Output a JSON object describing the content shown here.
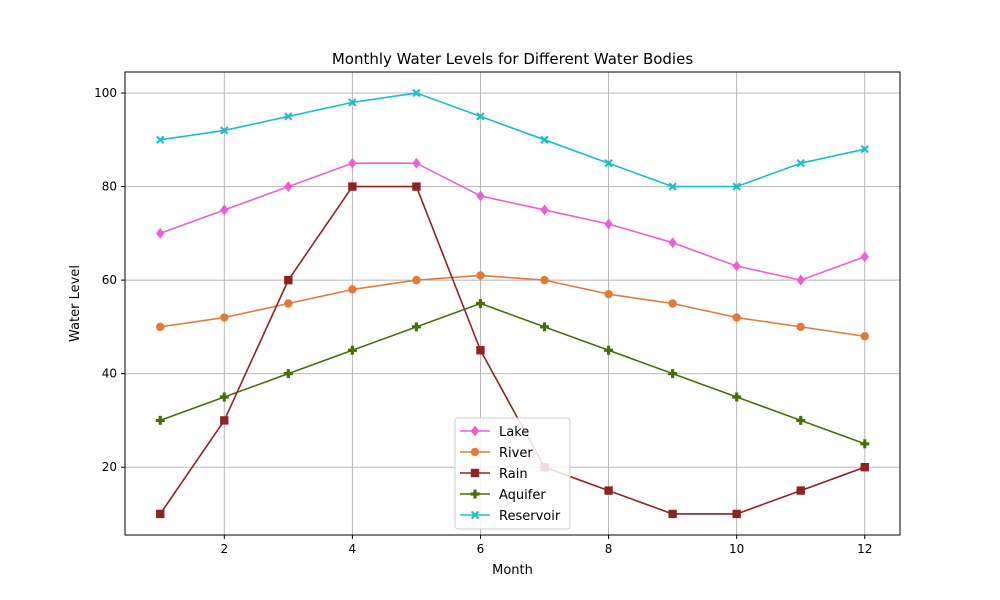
{
  "chart_data": {
    "type": "line",
    "title": "Monthly Water Levels for Different Water Bodies",
    "xlabel": "Month",
    "ylabel": "Water Level",
    "x": [
      1,
      2,
      3,
      4,
      5,
      6,
      7,
      8,
      9,
      10,
      11,
      12
    ],
    "xlim": [
      0.45,
      12.55
    ],
    "ylim": [
      5.5,
      104.5
    ],
    "xticks": [
      2,
      4,
      6,
      8,
      10,
      12
    ],
    "yticks": [
      20,
      40,
      60,
      80,
      100
    ],
    "grid": true,
    "legend_position": "lower center",
    "series": [
      {
        "name": "Lake",
        "color": "#ee5fd6",
        "marker": "diamond",
        "values": [
          70,
          75,
          80,
          85,
          85,
          78,
          75,
          72,
          68,
          63,
          60,
          65
        ]
      },
      {
        "name": "River",
        "color": "#e07b39",
        "marker": "circle",
        "values": [
          50,
          52,
          55,
          58,
          60,
          61,
          60,
          57,
          55,
          52,
          50,
          48
        ]
      },
      {
        "name": "Rain",
        "color": "#8b2520",
        "marker": "square",
        "values": [
          10,
          30,
          60,
          80,
          80,
          45,
          20,
          15,
          10,
          10,
          15,
          20
        ]
      },
      {
        "name": "Aquifer",
        "color": "#4a6e07",
        "marker": "plus",
        "values": [
          30,
          35,
          40,
          45,
          50,
          55,
          50,
          45,
          40,
          35,
          30,
          25
        ]
      },
      {
        "name": "Reservoir",
        "color": "#17becf",
        "marker": "x",
        "values": [
          90,
          92,
          95,
          98,
          100,
          95,
          90,
          85,
          80,
          80,
          85,
          88
        ]
      }
    ]
  }
}
